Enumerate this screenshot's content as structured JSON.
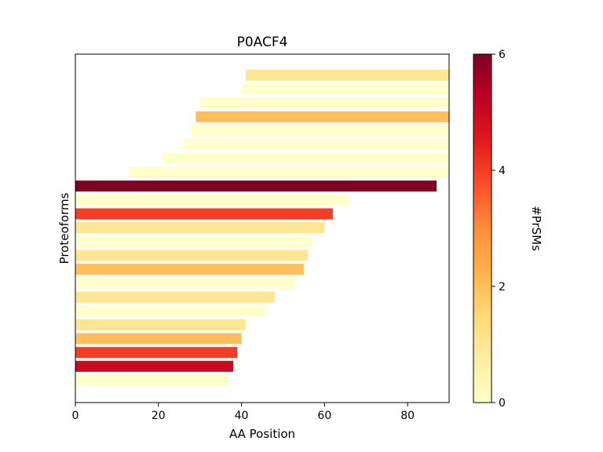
{
  "chart_data": {
    "type": "bar",
    "orientation": "horizontal",
    "title": "P0ACF4",
    "xlabel": "AA Position",
    "ylabel": "Proteoforms",
    "xlim": [
      0,
      90
    ],
    "xticks": [
      "0",
      "20",
      "40",
      "60",
      "80"
    ],
    "grid": false,
    "bars_bottom_to_top": [
      {
        "start": 0,
        "end": 37,
        "prsms": 0
      },
      {
        "start": 0,
        "end": 38,
        "prsms": 5
      },
      {
        "start": 0,
        "end": 39,
        "prsms": 4
      },
      {
        "start": 0,
        "end": 40,
        "prsms": 2
      },
      {
        "start": 0,
        "end": 41,
        "prsms": 1
      },
      {
        "start": 0,
        "end": 46,
        "prsms": 0
      },
      {
        "start": 0,
        "end": 48,
        "prsms": 1
      },
      {
        "start": 0,
        "end": 53,
        "prsms": 0
      },
      {
        "start": 0,
        "end": 55,
        "prsms": 2
      },
      {
        "start": 0,
        "end": 56,
        "prsms": 1
      },
      {
        "start": 0,
        "end": 57,
        "prsms": 0
      },
      {
        "start": 0,
        "end": 60,
        "prsms": 1
      },
      {
        "start": 0,
        "end": 62,
        "prsms": 4
      },
      {
        "start": 0,
        "end": 66,
        "prsms": 0
      },
      {
        "start": 0,
        "end": 87,
        "prsms": 6
      },
      {
        "start": 13,
        "end": 90,
        "prsms": 0
      },
      {
        "start": 21,
        "end": 90,
        "prsms": 0
      },
      {
        "start": 26,
        "end": 90,
        "prsms": 0
      },
      {
        "start": 28,
        "end": 90,
        "prsms": 0
      },
      {
        "start": 29,
        "end": 90,
        "prsms": 2
      },
      {
        "start": 30,
        "end": 90,
        "prsms": 0
      },
      {
        "start": 40,
        "end": 90,
        "prsms": 0
      },
      {
        "start": 41,
        "end": 90,
        "prsms": 1
      }
    ],
    "colorbar": {
      "label": "#PrSMs",
      "range": [
        0,
        6
      ],
      "ticks": [
        "0",
        "2",
        "4",
        "6"
      ],
      "colormap": "YlOrRd",
      "colors": [
        "#ffffcc",
        "#ffeda0",
        "#fed976",
        "#feb24c",
        "#fd8d3c",
        "#fc4e2a",
        "#e31a1c",
        "#bd0026",
        "#800026"
      ]
    }
  }
}
